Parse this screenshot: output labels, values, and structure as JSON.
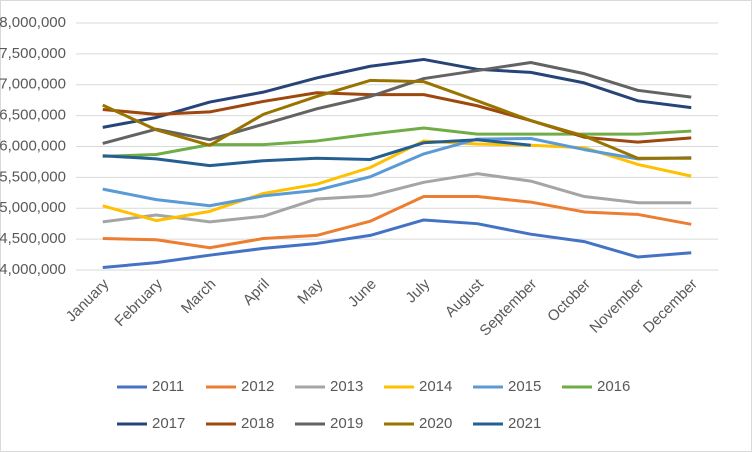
{
  "chart_data": {
    "type": "line",
    "categories": [
      "January",
      "February",
      "March",
      "April",
      "May",
      "June",
      "July",
      "August",
      "September",
      "October",
      "November",
      "December"
    ],
    "ylim": [
      4000000,
      8000000
    ],
    "yticks": [
      {
        "value": 4000000,
        "label": "4,000,000"
      },
      {
        "value": 4500000,
        "label": "4,500,000"
      },
      {
        "value": 5000000,
        "label": "5,000,000"
      },
      {
        "value": 5500000,
        "label": "5,500,000"
      },
      {
        "value": 6000000,
        "label": "6,000,000"
      },
      {
        "value": 6500000,
        "label": "6,500,000"
      },
      {
        "value": 7000000,
        "label": "7,000,000"
      },
      {
        "value": 7500000,
        "label": "7,500,000"
      },
      {
        "value": 8000000,
        "label": "8,000,000"
      }
    ],
    "grid": true,
    "legend": "bottom",
    "series": [
      {
        "name": "2011",
        "color": "#4472c4",
        "values": [
          4040000,
          4120000,
          4240000,
          4350000,
          4430000,
          4560000,
          4810000,
          4750000,
          4580000,
          4460000,
          4210000,
          4280000
        ]
      },
      {
        "name": "2012",
        "color": "#ed7d31",
        "values": [
          4510000,
          4490000,
          4360000,
          4510000,
          4560000,
          4790000,
          5190000,
          5190000,
          5100000,
          4940000,
          4900000,
          4740000
        ]
      },
      {
        "name": "2013",
        "color": "#a5a5a5",
        "values": [
          4780000,
          4890000,
          4780000,
          4870000,
          5150000,
          5200000,
          5420000,
          5560000,
          5440000,
          5190000,
          5090000,
          5090000
        ]
      },
      {
        "name": "2014",
        "color": "#ffc000",
        "values": [
          5040000,
          4800000,
          4950000,
          5240000,
          5390000,
          5660000,
          6090000,
          6040000,
          6020000,
          5980000,
          5710000,
          5520000
        ]
      },
      {
        "name": "2015",
        "color": "#5b9bd5",
        "values": [
          5310000,
          5140000,
          5040000,
          5200000,
          5290000,
          5510000,
          5880000,
          6120000,
          6130000,
          5950000,
          5800000,
          5820000
        ]
      },
      {
        "name": "2016",
        "color": "#70ad47",
        "values": [
          5840000,
          5870000,
          6030000,
          6030000,
          6090000,
          6200000,
          6300000,
          6200000,
          6200000,
          6200000,
          6200000,
          6250000
        ]
      },
      {
        "name": "2017",
        "color": "#264478",
        "values": [
          6310000,
          6470000,
          6720000,
          6880000,
          7110000,
          7300000,
          7410000,
          7250000,
          7200000,
          7030000,
          6740000,
          6630000
        ]
      },
      {
        "name": "2018",
        "color": "#9e480e",
        "values": [
          6600000,
          6520000,
          6560000,
          6730000,
          6870000,
          6840000,
          6840000,
          6660000,
          6420000,
          6150000,
          6070000,
          6140000
        ]
      },
      {
        "name": "2019",
        "color": "#636363",
        "values": [
          6050000,
          6280000,
          6110000,
          6360000,
          6610000,
          6810000,
          7100000,
          7230000,
          7360000,
          7180000,
          6910000,
          6800000
        ]
      },
      {
        "name": "2020",
        "color": "#997300",
        "values": [
          6670000,
          6270000,
          6020000,
          6520000,
          6810000,
          7070000,
          7050000,
          6740000,
          6420000,
          6170000,
          5810000,
          5810000
        ]
      },
      {
        "name": "2021",
        "color": "#255e91",
        "values": [
          5850000,
          5800000,
          5690000,
          5770000,
          5810000,
          5790000,
          6060000,
          6110000,
          6020000,
          null,
          null,
          null
        ]
      }
    ]
  }
}
